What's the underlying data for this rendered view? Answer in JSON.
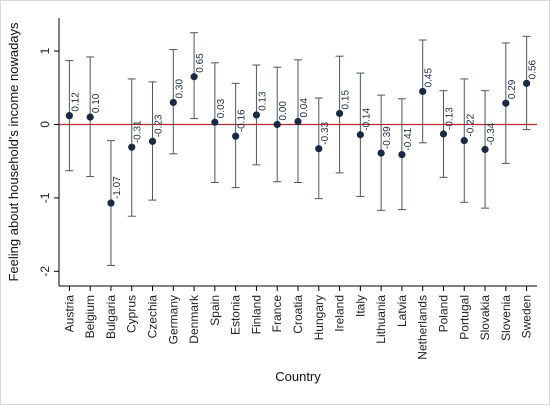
{
  "chart_data": {
    "type": "scatter",
    "xlabel": "Country",
    "ylabel": "Feeling about household's income nowadays",
    "ylim": [
      -2.2,
      1.45
    ],
    "yticks": [
      -2,
      -1,
      0,
      1
    ],
    "reference_line": {
      "y": 0,
      "color": "#c0262d"
    },
    "categories": [
      "Austria",
      "Belgium",
      "Bulgaria",
      "Cyprus",
      "Czechia",
      "Germany",
      "Denmark",
      "Spain",
      "Estonia",
      "Finland",
      "France",
      "Croatia",
      "Hungary",
      "Ireland",
      "Italy",
      "Lithuania",
      "Latvia",
      "Netherlands",
      "Poland",
      "Portugal",
      "Slovakia",
      "Slovenia",
      "Sweden"
    ],
    "values": [
      0.12,
      0.1,
      -1.07,
      -0.31,
      -0.23,
      0.3,
      0.65,
      0.03,
      -0.16,
      0.13,
      0.0,
      0.04,
      -0.33,
      0.15,
      -0.14,
      -0.39,
      -0.41,
      0.45,
      -0.13,
      -0.22,
      -0.34,
      0.29,
      0.56
    ],
    "value_labels": [
      "0.12",
      "0.10",
      "-1.07",
      "-0.31",
      "-0.23",
      "0.30",
      "0.65",
      "0.03",
      "-0.16",
      "0.13",
      "0.00",
      "0.04",
      "-0.33",
      "0.15",
      "-0.14",
      "-0.39",
      "-0.41",
      "0.45",
      "-0.13",
      "-0.22",
      "-0.34",
      "0.29",
      "0.56"
    ],
    "lower": [
      -0.63,
      -0.71,
      -1.92,
      -1.25,
      -1.03,
      -0.4,
      0.08,
      -0.79,
      -0.86,
      -0.55,
      -0.78,
      -0.79,
      -1.01,
      -0.66,
      -0.98,
      -1.17,
      -1.16,
      -0.25,
      -0.72,
      -1.06,
      -1.14,
      -0.53,
      -0.07
    ],
    "upper": [
      0.87,
      0.92,
      -0.22,
      0.62,
      0.58,
      1.02,
      1.25,
      0.84,
      0.56,
      0.81,
      0.78,
      0.88,
      0.36,
      0.93,
      0.7,
      0.4,
      0.35,
      1.15,
      0.46,
      0.62,
      0.46,
      1.11,
      1.2
    ],
    "grid": false,
    "colors": {
      "marker": "#1a2a44",
      "errorbar": "#4b5563",
      "axis": "#000000"
    }
  }
}
